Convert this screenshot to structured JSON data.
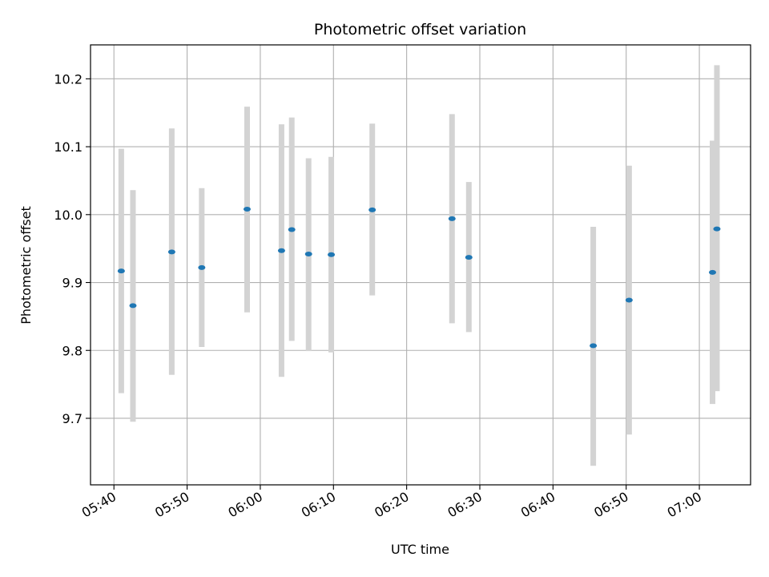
{
  "chart_data": {
    "type": "scatter",
    "title": "Photometric offset variation",
    "xlabel": "UTC time",
    "ylabel": "Photometric offset",
    "x_ticks": [
      "05:40",
      "05:50",
      "06:00",
      "06:10",
      "06:20",
      "06:30",
      "06:40",
      "06:50",
      "07:00"
    ],
    "y_ticks": [
      9.7,
      9.8,
      9.9,
      10.0,
      10.1,
      10.2
    ],
    "xlim": [
      "05:36.8",
      "07:07.0"
    ],
    "ylim": [
      9.602,
      10.25
    ],
    "grid": true,
    "point_color": "#1f77b4",
    "errorbar_color": "#d3d3d3",
    "points": [
      {
        "time": "05:41.0",
        "value": 9.917,
        "err_low": 9.737,
        "err_high": 10.097
      },
      {
        "time": "05:42.6",
        "value": 9.866,
        "err_low": 9.695,
        "err_high": 10.036
      },
      {
        "time": "05:47.9",
        "value": 9.945,
        "err_low": 9.764,
        "err_high": 10.127
      },
      {
        "time": "05:52.0",
        "value": 9.922,
        "err_low": 9.805,
        "err_high": 10.039
      },
      {
        "time": "05:58.2",
        "value": 10.008,
        "err_low": 9.856,
        "err_high": 10.159
      },
      {
        "time": "06:02.9",
        "value": 9.947,
        "err_low": 9.761,
        "err_high": 10.133
      },
      {
        "time": "06:04.3",
        "value": 9.978,
        "err_low": 9.814,
        "err_high": 10.143
      },
      {
        "time": "06:06.6",
        "value": 9.942,
        "err_low": 9.799,
        "err_high": 10.083
      },
      {
        "time": "06:09.7",
        "value": 9.941,
        "err_low": 9.797,
        "err_high": 10.085
      },
      {
        "time": "06:15.3",
        "value": 10.007,
        "err_low": 9.881,
        "err_high": 10.134
      },
      {
        "time": "06:26.2",
        "value": 9.994,
        "err_low": 9.84,
        "err_high": 10.148
      },
      {
        "time": "06:28.5",
        "value": 9.937,
        "err_low": 9.827,
        "err_high": 10.048
      },
      {
        "time": "06:45.5",
        "value": 9.807,
        "err_low": 9.63,
        "err_high": 9.982
      },
      {
        "time": "06:50.4",
        "value": 9.874,
        "err_low": 9.676,
        "err_high": 10.072
      },
      {
        "time": "07:01.8",
        "value": 9.915,
        "err_low": 9.721,
        "err_high": 10.109
      },
      {
        "time": "07:02.4",
        "value": 9.979,
        "err_low": 9.74,
        "err_high": 10.22
      }
    ]
  }
}
